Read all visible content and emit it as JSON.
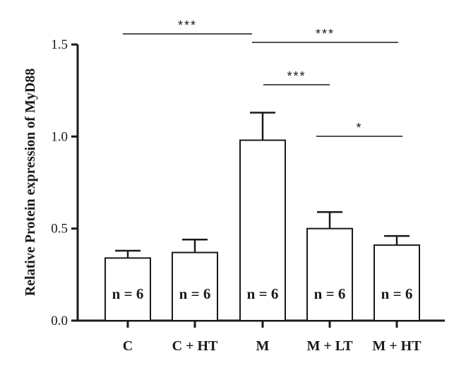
{
  "chart_data": {
    "type": "bar",
    "title": "",
    "xlabel": "",
    "ylabel": "Relative Protein expression of MyD88",
    "ylim": [
      0,
      1.5
    ],
    "yticks": [
      0.0,
      0.5,
      1.0,
      1.5
    ],
    "ytick_labels": [
      "0.0",
      "0.5",
      "1.0",
      "1.5"
    ],
    "grid": false,
    "categories": [
      "C",
      "C + HT",
      "M",
      "M + LT",
      "M + HT"
    ],
    "values": [
      0.34,
      0.37,
      0.98,
      0.5,
      0.41
    ],
    "errors": [
      0.04,
      0.07,
      0.15,
      0.09,
      0.05
    ],
    "bar_labels": [
      "n = 6",
      "n = 6",
      "n = 6",
      "n = 6",
      "n = 6"
    ],
    "significance": [
      {
        "from": "C",
        "to": "M",
        "label": "***"
      },
      {
        "from": "M",
        "to": "M + HT",
        "label": "***"
      },
      {
        "from": "M",
        "to": "M + LT",
        "label": "***"
      },
      {
        "from": "M + LT",
        "to": "M + HT",
        "label": "*"
      }
    ]
  },
  "colors": {
    "bar_fill": "#ffffff",
    "bar_stroke": "#1a1a1a",
    "axis": "#1a1a1a"
  }
}
